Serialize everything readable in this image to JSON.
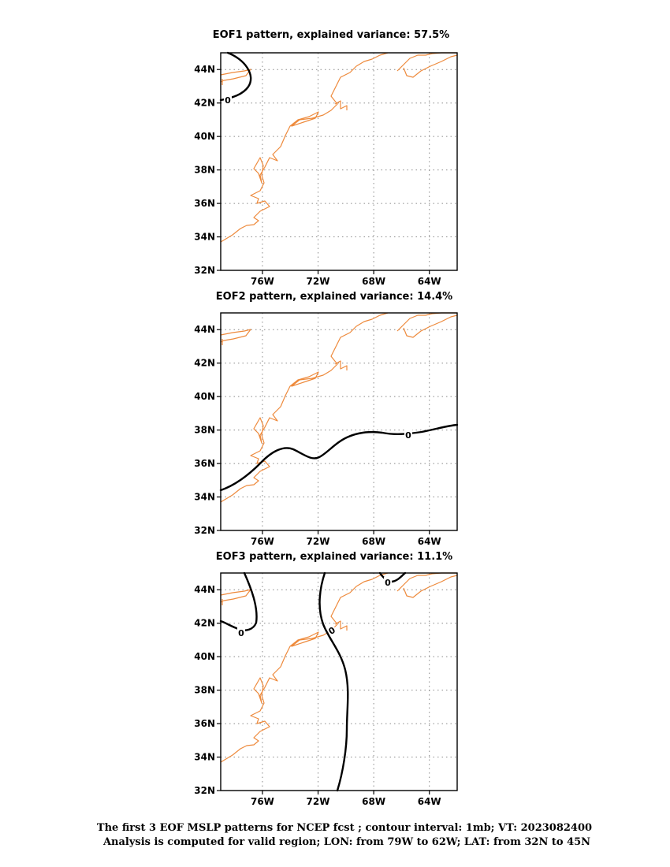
{
  "panels": [
    {
      "title": "EOF1 pattern, explained variance: 57.5%"
    },
    {
      "title": "EOF2 pattern, explained variance: 14.4%"
    },
    {
      "title": "EOF3 pattern, explained variance: 11.1%"
    }
  ],
  "lat_ticks": [
    "44N",
    "42N",
    "40N",
    "38N",
    "36N",
    "34N",
    "32N"
  ],
  "lon_ticks": [
    "76W",
    "72W",
    "68W",
    "64W"
  ],
  "contour_label": "0",
  "footer": {
    "line1": "The first 3 EOF MSLP patterns for NCEP fcst ; contour interval: 1mb; VT: 2023082400",
    "line2": "Analysis is computed for valid region; LON: from 79W to 62W; LAT: from 32N to 45N"
  },
  "colors": {
    "coastline": "#ee8a3c",
    "contour": "#000000",
    "grid": "#8a8a8a"
  }
}
